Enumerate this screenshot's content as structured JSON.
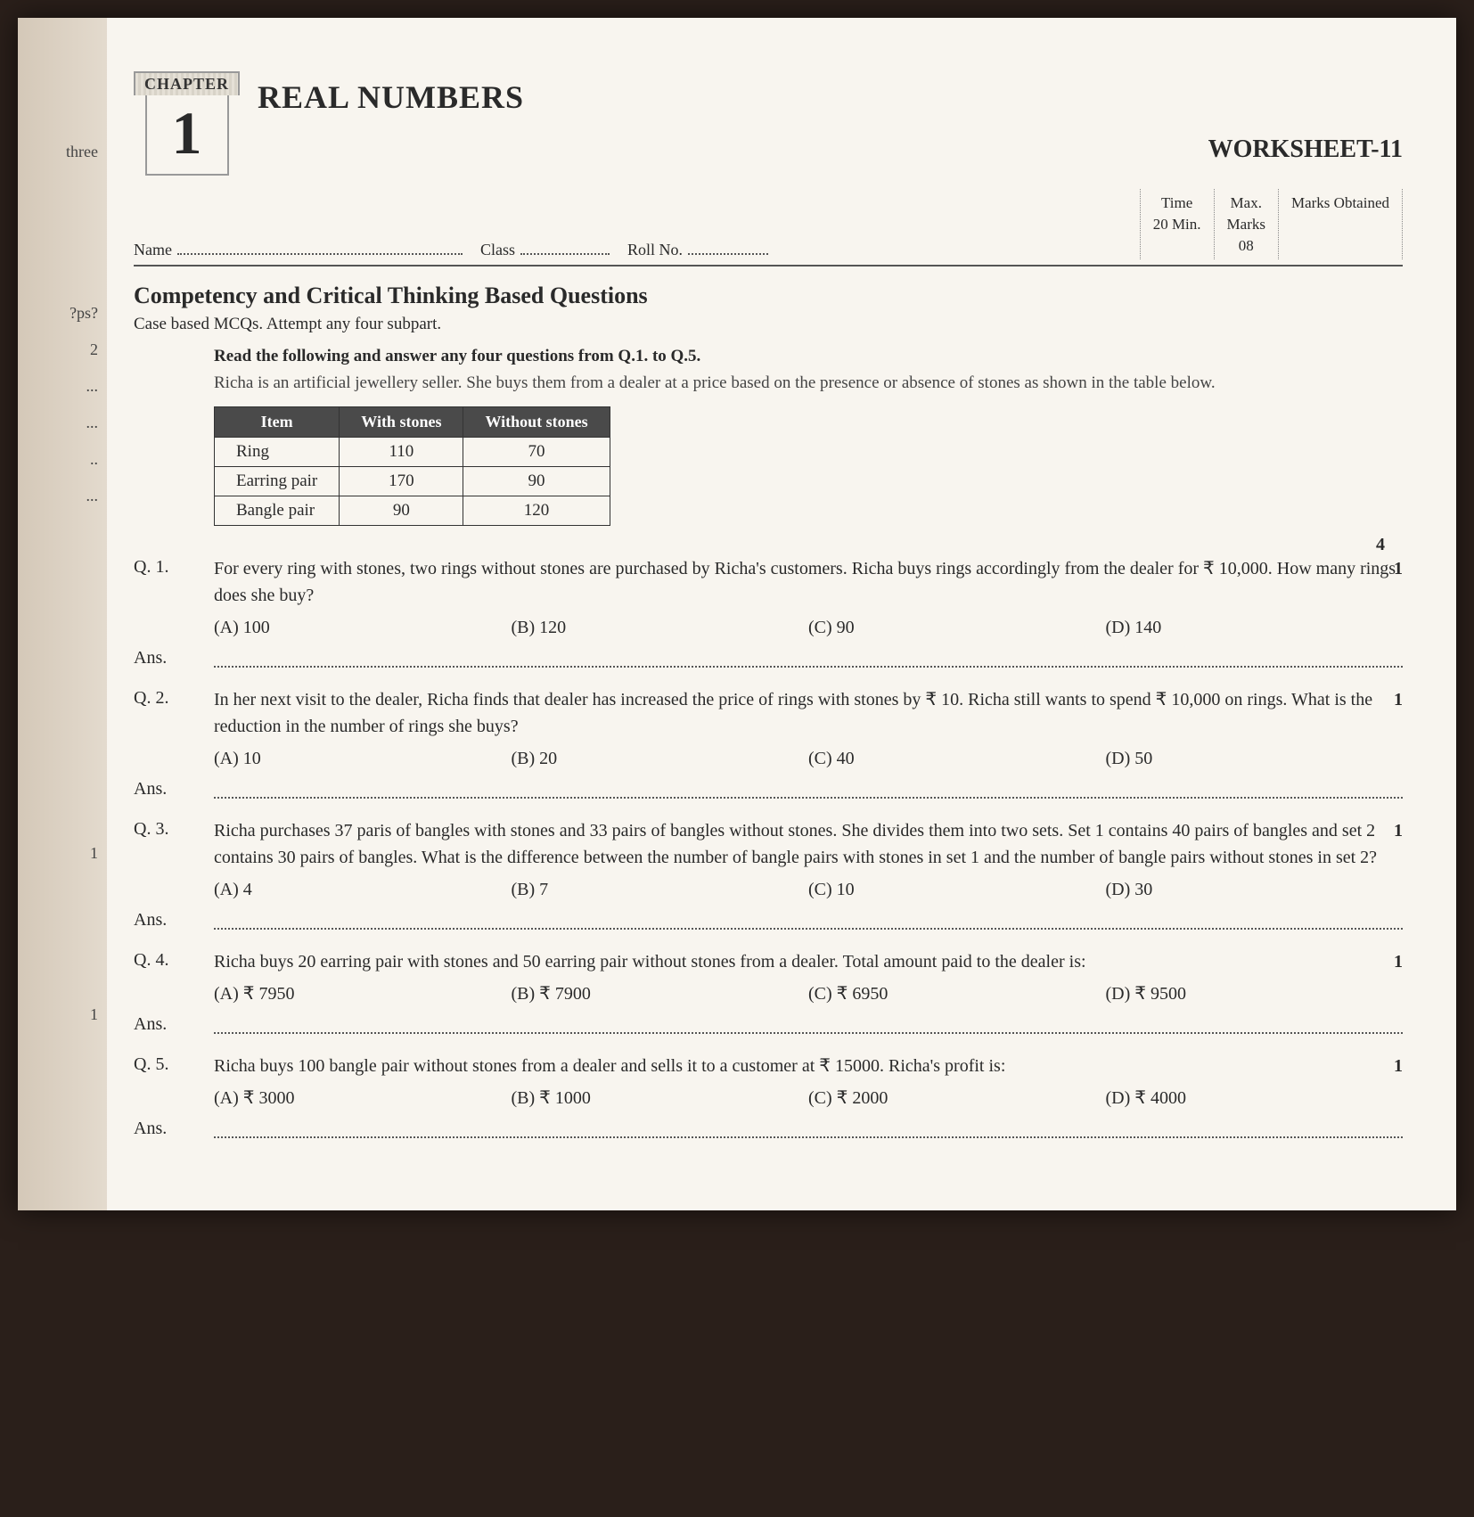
{
  "left_margin": {
    "items": [
      "three",
      "?ps?",
      "2",
      "...",
      "...",
      "..",
      "...",
      "1",
      "1"
    ]
  },
  "header": {
    "chapter_label": "CHAPTER",
    "chapter_num": "1",
    "title": "REAL NUMBERS",
    "worksheet": "WORKSHEET-11"
  },
  "meta": {
    "name": "Name",
    "class": "Class",
    "roll": "Roll No.",
    "time_label": "Time",
    "time_val": "20 Min.",
    "max_label": "Max.",
    "marks_label": "Marks",
    "max_val": "08",
    "obtained": "Marks Obtained"
  },
  "section": {
    "heading": "Competency and Critical Thinking Based Questions",
    "instr": "Case based MCQs. Attempt any four subpart."
  },
  "intro": {
    "bold": "Read the following and answer any four questions from Q.1. to Q.5.",
    "text": "Richa is an artificial jewellery seller. She buys them from a dealer at a price based on the presence or absence of stones as shown in the table below."
  },
  "table": {
    "headers": [
      "Item",
      "With stones",
      "Without stones"
    ],
    "rows": [
      [
        "Ring",
        "110",
        "70"
      ],
      [
        "Earring pair",
        "170",
        "90"
      ],
      [
        "Bangle pair",
        "90",
        "120"
      ]
    ]
  },
  "total_marks_corner": "4",
  "questions": [
    {
      "label": "Q. 1.",
      "text": "For every ring with stones, two rings without stones are purchased by Richa's customers. Richa buys rings accordingly from the dealer for ₹ 10,000. How many rings does she buy?",
      "marks": "1",
      "options": [
        "(A) 100",
        "(B) 120",
        "(C) 90",
        "(D) 140"
      ]
    },
    {
      "label": "Q. 2.",
      "text": "In her next visit to the dealer, Richa finds that dealer has increased the price of rings with stones by ₹ 10. Richa still wants to spend ₹ 10,000 on rings. What is the reduction in the number of rings she buys?",
      "marks": "1",
      "options": [
        "(A) 10",
        "(B) 20",
        "(C) 40",
        "(D) 50"
      ]
    },
    {
      "label": "Q. 3.",
      "text": "Richa purchases 37 paris of bangles with stones and 33 pairs of bangles without stones. She divides them into two sets. Set 1 contains 40 pairs of bangles and set 2 contains 30 pairs of bangles. What is the difference between the number of bangle pairs with stones in set 1 and the number of bangle pairs without stones in set 2?",
      "marks": "1",
      "options": [
        "(A) 4",
        "(B) 7",
        "(C) 10",
        "(D) 30"
      ]
    },
    {
      "label": "Q. 4.",
      "text": "Richa buys 20 earring pair with stones and 50 earring pair without stones from a dealer. Total amount paid to the dealer is:",
      "marks": "1",
      "options": [
        "(A) ₹ 7950",
        "(B) ₹ 7900",
        "(C) ₹ 6950",
        "(D) ₹ 9500"
      ]
    },
    {
      "label": "Q. 5.",
      "text": "Richa buys 100 bangle pair without stones from a dealer and sells it to a customer at ₹ 15000. Richa's profit is:",
      "marks": "1",
      "options": [
        "(A) ₹ 3000",
        "(B) ₹ 1000",
        "(C) ₹ 2000",
        "(D) ₹ 4000"
      ]
    }
  ],
  "ans_label": "Ans."
}
